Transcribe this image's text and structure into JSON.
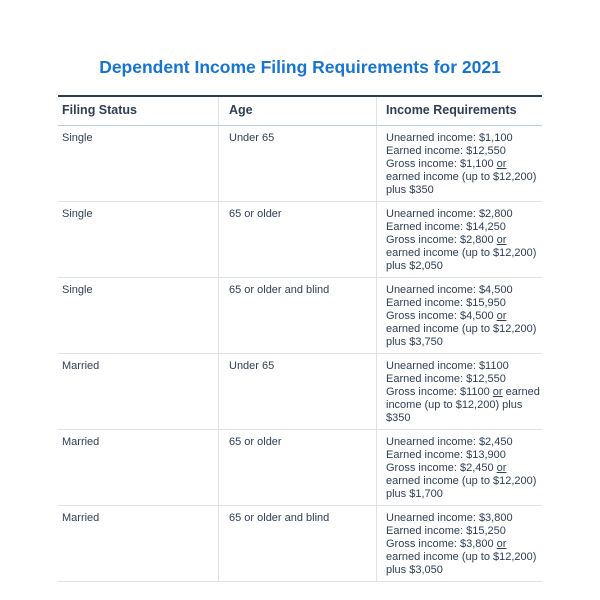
{
  "colors": {
    "title_blue": "#1674d3",
    "text_navy": "#2f3e55",
    "header_rule_dark": "#2e3d54",
    "header_rule_light": "#b9cfe4",
    "divider_gray": "#dfe3e8"
  },
  "chart_data": {
    "type": "table",
    "title": "Dependent Income Filing Requirements for 2021",
    "columns": [
      "Filing Status",
      "Age",
      "Income Requirements"
    ],
    "rows": [
      {
        "filing_status": "Single",
        "age": "Under 65",
        "income_lines": [
          "Unearned income: $1,100",
          "Earned income: $12,550"
        ],
        "gross_pre": "Gross income: $1,100 ",
        "or_word": "or",
        "gross_post": " earned income (up to $12,200) plus $350"
      },
      {
        "filing_status": "Single",
        "age": "65 or older",
        "income_lines": [
          "Unearned income: $2,800",
          "Earned income: $14,250"
        ],
        "gross_pre": "Gross income: $2,800 ",
        "or_word": "or",
        "gross_post": " earned income (up to $12,200) plus $2,050"
      },
      {
        "filing_status": "Single",
        "age": "65 or older and blind",
        "income_lines": [
          "Unearned income: $4,500",
          "Earned income: $15,950"
        ],
        "gross_pre": "Gross income: $4,500 ",
        "or_word": "or",
        "gross_post": " earned income (up to $12,200) plus $3,750"
      },
      {
        "filing_status": "Married",
        "age": "Under 65",
        "income_lines": [
          "Unearned income: $1100",
          "Earned income: $12,550"
        ],
        "gross_pre": "Gross income: $1100 ",
        "or_word": "or",
        "gross_post": " earned income (up to $12,200) plus $350"
      },
      {
        "filing_status": "Married",
        "age": "65 or older",
        "income_lines": [
          "Unearned income: $2,450",
          "Earned income: $13,900"
        ],
        "gross_pre": "Gross income: $2,450 ",
        "or_word": "or",
        "gross_post": " earned income (up to $12,200) plus $1,700"
      },
      {
        "filing_status": "Married",
        "age": "65 or older and blind",
        "income_lines": [
          "Unearned income: $3,800",
          "Earned income: $15,250"
        ],
        "gross_pre": "Gross income: $3,800 ",
        "or_word": "or",
        "gross_post": " earned income (up to $12,200) plus $3,050"
      }
    ]
  }
}
